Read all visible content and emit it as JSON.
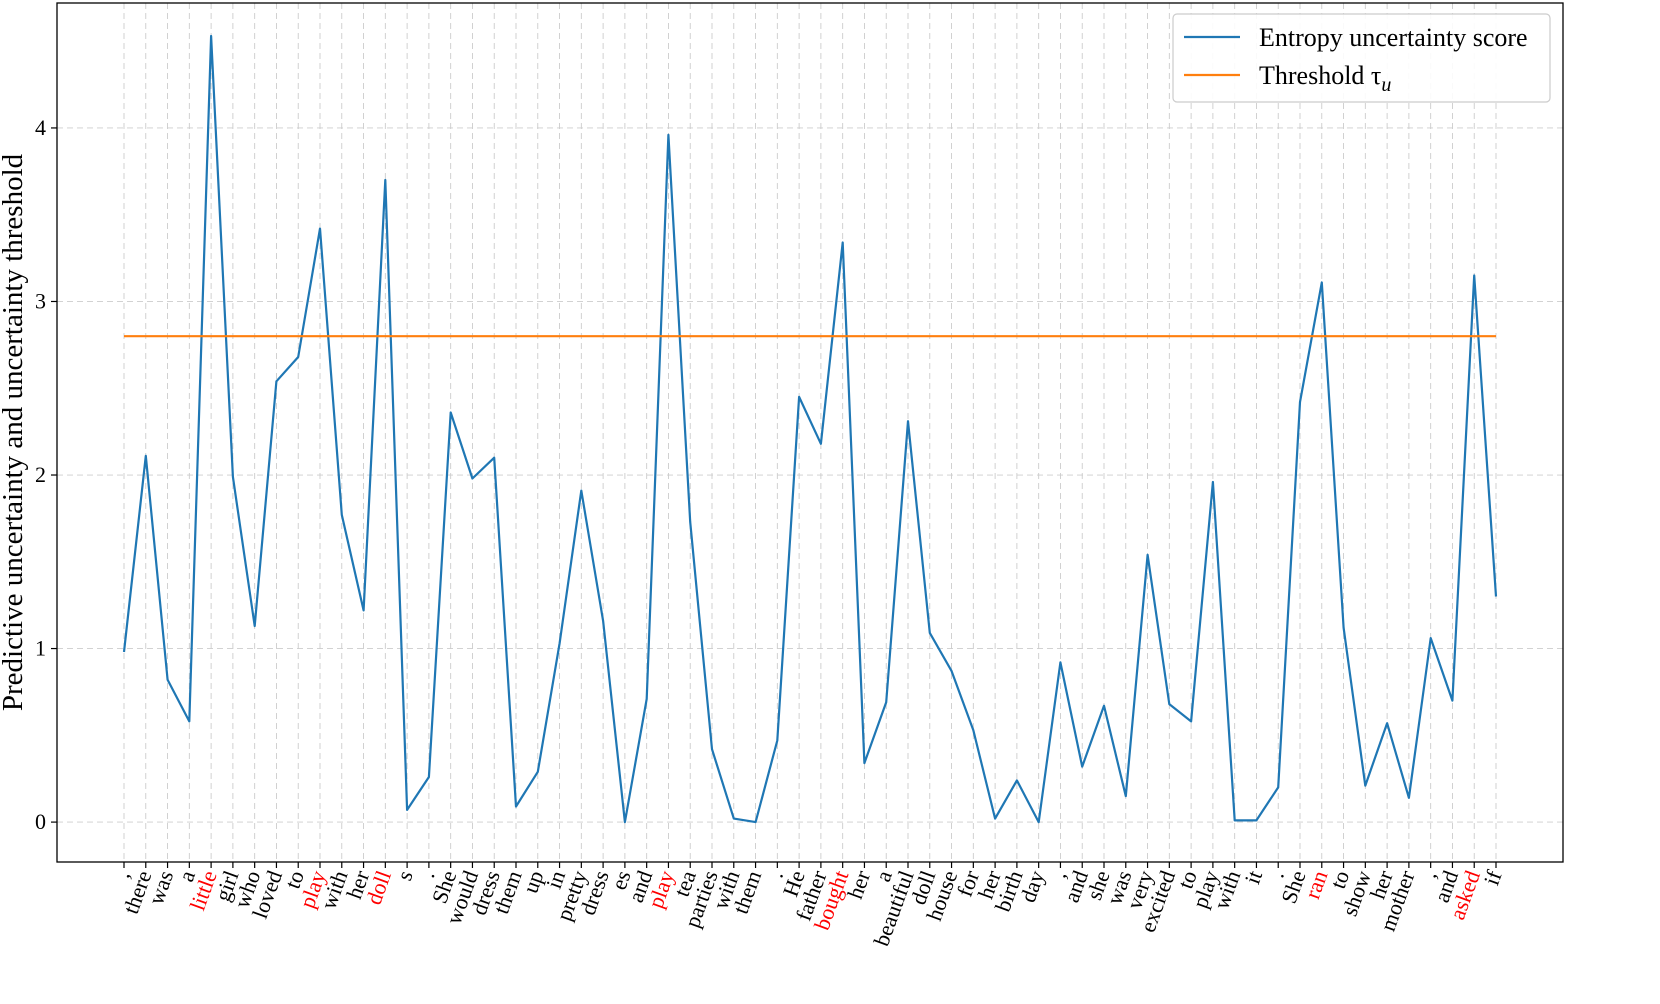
{
  "chart_data": {
    "type": "line",
    "xlabel": "",
    "ylabel": "Predictive uncertainty and uncertainty threshold",
    "ylim": [
      -0.23,
      4.72
    ],
    "yticks": [
      0,
      1,
      2,
      3,
      4
    ],
    "grid": true,
    "legend_position": "top-right",
    "categories": [
      ",",
      "there",
      "was",
      "a",
      "little",
      "girl",
      "who",
      "loved",
      "to",
      "play",
      "with",
      "her",
      "doll",
      "s",
      ".",
      "She",
      "would",
      "dress",
      "them",
      "up",
      "in",
      "pretty",
      "dress",
      "es",
      "and",
      "play",
      "tea",
      "parties",
      "with",
      "them",
      ".",
      "He",
      "father",
      "bought",
      "her",
      "a",
      "beautiful",
      "doll",
      "house",
      "for",
      "her",
      "birth",
      "day",
      ",",
      "and",
      "she",
      "was",
      "very",
      "excited",
      "to",
      "play",
      "with",
      "it",
      ".",
      "She",
      "ran",
      "to",
      "show",
      "her",
      "mother",
      ",",
      "and",
      "asked",
      "if"
    ],
    "highlighted_indices": [
      4,
      9,
      12,
      25,
      33,
      55,
      62
    ],
    "highlight_color": "#ff0000",
    "series": [
      {
        "name": "Entropy uncertainty score",
        "color": "#1f77b4",
        "values": [
          0.98,
          2.11,
          0.82,
          0.58,
          4.53,
          1.99,
          1.13,
          2.54,
          2.68,
          3.42,
          1.77,
          1.22,
          3.7,
          0.07,
          0.26,
          2.36,
          1.98,
          2.1,
          0.09,
          0.29,
          1.03,
          1.91,
          1.16,
          0.0,
          0.71,
          3.96,
          1.73,
          0.42,
          0.02,
          0.0,
          0.47,
          2.45,
          2.18,
          3.34,
          0.34,
          0.69,
          2.31,
          1.09,
          0.87,
          0.53,
          0.02,
          0.24,
          0.0,
          0.92,
          0.32,
          0.67,
          0.15,
          1.54,
          0.68,
          0.58,
          1.96,
          0.01,
          0.01,
          0.2,
          2.42,
          3.11,
          1.12,
          0.21,
          0.57,
          0.14,
          1.06,
          0.7,
          3.15,
          1.3
        ]
      },
      {
        "name": "Threshold τ_u",
        "color": "#ff7f0e",
        "constant": 2.8
      }
    ]
  },
  "legend": {
    "entries": [
      {
        "label": "Entropy uncertainty score",
        "color": "#1f77b4"
      },
      {
        "label": "Threshold τ",
        "subscript": "u",
        "color": "#ff7f0e"
      }
    ]
  },
  "colors": {
    "grid": "#cccccc",
    "axis": "#000000",
    "normal_label": "#000000"
  }
}
